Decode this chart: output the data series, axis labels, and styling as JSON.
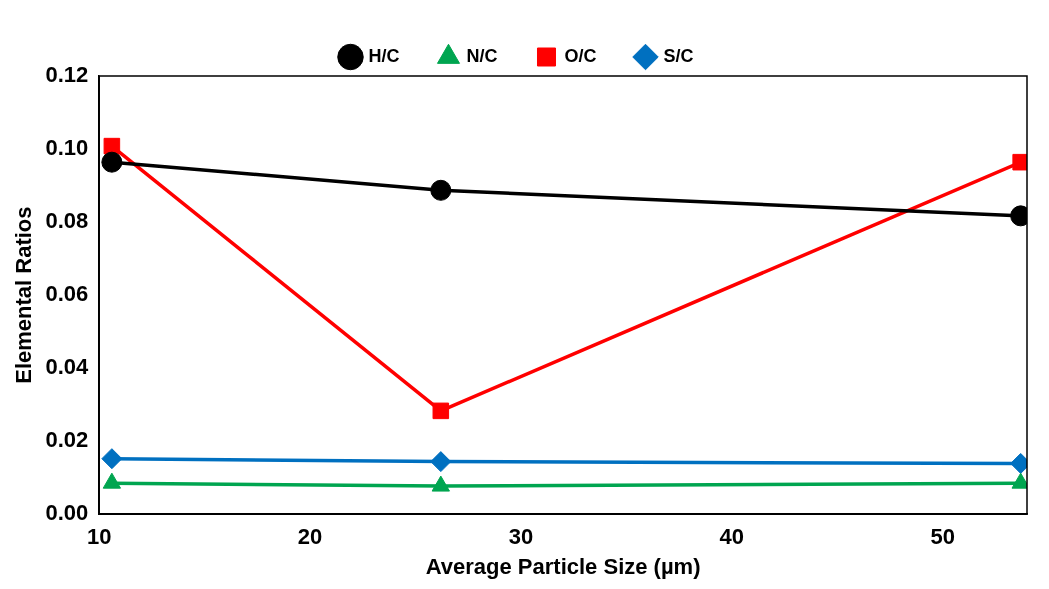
{
  "chart_data": {
    "type": "line",
    "xlabel": "Average Particle Size (µm)",
    "ylabel": "Elemental Ratios",
    "x": [
      10.6,
      26.2,
      53.7
    ],
    "xlim": [
      10,
      54
    ],
    "xticks": [
      10,
      20,
      30,
      40,
      50
    ],
    "ylim": [
      0,
      0.12
    ],
    "yticks": [
      {
        "value": 0,
        "label": "0.00"
      },
      {
        "value": 0.02,
        "label": "0.02"
      },
      {
        "value": 0.04,
        "label": "0.04"
      },
      {
        "value": 0.06,
        "label": "0.06"
      },
      {
        "value": 0.08,
        "label": "0.08"
      },
      {
        "value": 0.1,
        "label": "0.10"
      },
      {
        "value": 0.12,
        "label": "0.12"
      }
    ],
    "grid": false,
    "legend": "top",
    "line_style": "solid",
    "series": [
      {
        "name": "H/C",
        "color": "#000000",
        "marker": "circle",
        "values": [
          0.0964,
          0.0887,
          0.0817
        ]
      },
      {
        "name": "N/C",
        "color": "#00a550",
        "marker": "triangle",
        "values": [
          0.0085,
          0.0077,
          0.0085
        ]
      },
      {
        "name": "O/C",
        "color": "#ff0000",
        "marker": "square",
        "values": [
          0.1008,
          0.0283,
          0.0964
        ]
      },
      {
        "name": "S/C",
        "color": "#0070c0",
        "marker": "diamond",
        "values": [
          0.0152,
          0.0144,
          0.0139
        ]
      }
    ]
  }
}
